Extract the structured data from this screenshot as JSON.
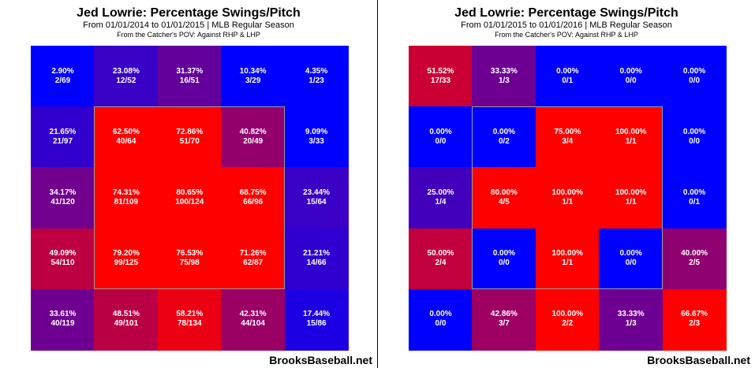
{
  "panels": [
    {
      "title": "Jed Lowrie: Percentage Swings/Pitch",
      "subtitle": "From 01/01/2014 to 01/01/2015 | MLB Regular Season",
      "subtitle2": "From the Catcher's POV:  Against RHP & LHP",
      "watermark": "BrooksBaseball.net"
    },
    {
      "title": "Jed Lowrie: Percentage Swings/Pitch",
      "subtitle": "From 01/01/2015 to 01/01/2016 | MLB Regular Season",
      "subtitle2": "From the Catcher's POV:  Against RHP & LHP",
      "watermark": "BrooksBaseball.net"
    }
  ],
  "chart_data": [
    {
      "type": "heatmap",
      "title": "Jed Lowrie: Percentage Swings/Pitch",
      "subtitle": "From 01/01/2014 to 01/01/2015 | MLB Regular Season",
      "rows": [
        [
          {
            "pct": "2.90%",
            "count": "2/69",
            "value": 2.9
          },
          {
            "pct": "23.08%",
            "count": "12/52",
            "value": 23.08
          },
          {
            "pct": "31.37%",
            "count": "16/51",
            "value": 31.37
          },
          {
            "pct": "10.34%",
            "count": "3/29",
            "value": 10.34
          },
          {
            "pct": "4.35%",
            "count": "1/23",
            "value": 4.35
          }
        ],
        [
          {
            "pct": "21.65%",
            "count": "21/97",
            "value": 21.65
          },
          {
            "pct": "62.50%",
            "count": "40/64",
            "value": 62.5
          },
          {
            "pct": "72.86%",
            "count": "51/70",
            "value": 72.86
          },
          {
            "pct": "40.82%",
            "count": "20/49",
            "value": 40.82
          },
          {
            "pct": "9.09%",
            "count": "3/33",
            "value": 9.09
          }
        ],
        [
          {
            "pct": "34.17%",
            "count": "41/120",
            "value": 34.17
          },
          {
            "pct": "74.31%",
            "count": "81/109",
            "value": 74.31
          },
          {
            "pct": "80.65%",
            "count": "100/124",
            "value": 80.65
          },
          {
            "pct": "68.75%",
            "count": "66/96",
            "value": 68.75
          },
          {
            "pct": "23.44%",
            "count": "15/64",
            "value": 23.44
          }
        ],
        [
          {
            "pct": "49.09%",
            "count": "54/110",
            "value": 49.09
          },
          {
            "pct": "79.20%",
            "count": "99/125",
            "value": 79.2
          },
          {
            "pct": "76.53%",
            "count": "75/98",
            "value": 76.53
          },
          {
            "pct": "71.26%",
            "count": "62/87",
            "value": 71.26
          },
          {
            "pct": "21.21%",
            "count": "14/66",
            "value": 21.21
          }
        ],
        [
          {
            "pct": "33.61%",
            "count": "40/119",
            "value": 33.61
          },
          {
            "pct": "48.51%",
            "count": "49/101",
            "value": 48.51
          },
          {
            "pct": "58.21%",
            "count": "78/134",
            "value": 58.21
          },
          {
            "pct": "42.31%",
            "count": "44/104",
            "value": 42.31
          },
          {
            "pct": "17.44%",
            "count": "15/86",
            "value": 17.44
          }
        ]
      ],
      "strike_zone": "inner 3x3",
      "color_scale": {
        "low": "#0000ff",
        "high": "#ff0000"
      }
    },
    {
      "type": "heatmap",
      "title": "Jed Lowrie: Percentage Swings/Pitch",
      "subtitle": "From 01/01/2015 to 01/01/2016 | MLB Regular Season",
      "rows": [
        [
          {
            "pct": "51.52%",
            "count": "17/33",
            "value": 51.52
          },
          {
            "pct": "33.33%",
            "count": "1/3",
            "value": 33.33
          },
          {
            "pct": "0.00%",
            "count": "0/1",
            "value": 0
          },
          {
            "pct": "0.00%",
            "count": "0/0",
            "value": 0
          },
          {
            "pct": "0.00%",
            "count": "0/0",
            "value": 0
          }
        ],
        [
          {
            "pct": "0.00%",
            "count": "0/0",
            "value": 0
          },
          {
            "pct": "0.00%",
            "count": "0/2",
            "value": 0
          },
          {
            "pct": "75.00%",
            "count": "3/4",
            "value": 75.0
          },
          {
            "pct": "100.00%",
            "count": "1/1",
            "value": 100
          },
          {
            "pct": "0.00%",
            "count": "0/0",
            "value": 0
          }
        ],
        [
          {
            "pct": "25.00%",
            "count": "1/4",
            "value": 25.0
          },
          {
            "pct": "80.00%",
            "count": "4/5",
            "value": 80.0
          },
          {
            "pct": "100.00%",
            "count": "1/1",
            "value": 100
          },
          {
            "pct": "100.00%",
            "count": "1/1",
            "value": 100
          },
          {
            "pct": "0.00%",
            "count": "0/1",
            "value": 0
          }
        ],
        [
          {
            "pct": "50.00%",
            "count": "2/4",
            "value": 50.0
          },
          {
            "pct": "0.00%",
            "count": "0/0",
            "value": 0
          },
          {
            "pct": "100.00%",
            "count": "1/1",
            "value": 100
          },
          {
            "pct": "0.00%",
            "count": "0/0",
            "value": 0
          },
          {
            "pct": "40.00%",
            "count": "2/5",
            "value": 40.0
          }
        ],
        [
          {
            "pct": "0.00%",
            "count": "0/0",
            "value": 0
          },
          {
            "pct": "42.86%",
            "count": "3/7",
            "value": 42.86
          },
          {
            "pct": "100.00%",
            "count": "2/2",
            "value": 100
          },
          {
            "pct": "33.33%",
            "count": "1/3",
            "value": 33.33
          },
          {
            "pct": "66.67%",
            "count": "2/3",
            "value": 66.67
          }
        ]
      ],
      "strike_zone": "inner 3x3",
      "color_scale": {
        "low": "#0000ff",
        "high": "#ff0000"
      }
    }
  ]
}
